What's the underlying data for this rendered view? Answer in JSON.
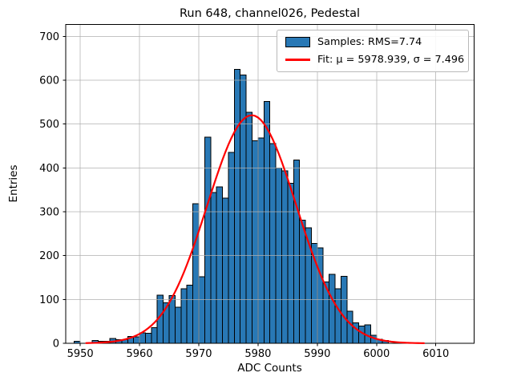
{
  "chart_data": {
    "type": "histogram",
    "title": "Run 648, channel026, Pedestal",
    "xlabel": "ADC Counts",
    "ylabel": "Entries",
    "bin_start": 5949,
    "bin_width": 1,
    "counts": [
      5,
      0,
      0,
      6,
      5,
      5,
      11,
      8,
      8,
      16,
      15,
      24,
      23,
      36,
      110,
      92,
      109,
      82,
      124,
      133,
      318,
      152,
      470,
      344,
      357,
      331,
      435,
      625,
      612,
      527,
      462,
      468,
      551,
      455,
      400,
      393,
      365,
      418,
      281,
      263,
      228,
      218,
      140,
      157,
      124,
      153,
      73,
      47,
      39,
      42,
      18,
      9,
      6
    ],
    "x_ticks": [
      5950,
      5960,
      5970,
      5980,
      5990,
      6000,
      6010
    ],
    "y_ticks": [
      0,
      100,
      200,
      300,
      400,
      500,
      600,
      700
    ],
    "xlim": [
      5947.55,
      6016.45
    ],
    "ylim": [
      0,
      727
    ],
    "grid": true,
    "legend": {
      "position": "upper right",
      "entries": [
        "Samples: RMS=7.74",
        "Fit: μ = 5978.939, σ = 7.496"
      ]
    },
    "fit": {
      "mu": 5978.939,
      "sigma": 7.496,
      "amplitude": 520,
      "range": [
        5951,
        6008
      ]
    },
    "stats": {
      "rms": 7.74
    },
    "colors": {
      "bar_fill": "#2878b5",
      "bar_edge": "#000000",
      "fit_line": "#ff0000",
      "grid": "#b0b0b0",
      "background": "#ffffff"
    }
  }
}
